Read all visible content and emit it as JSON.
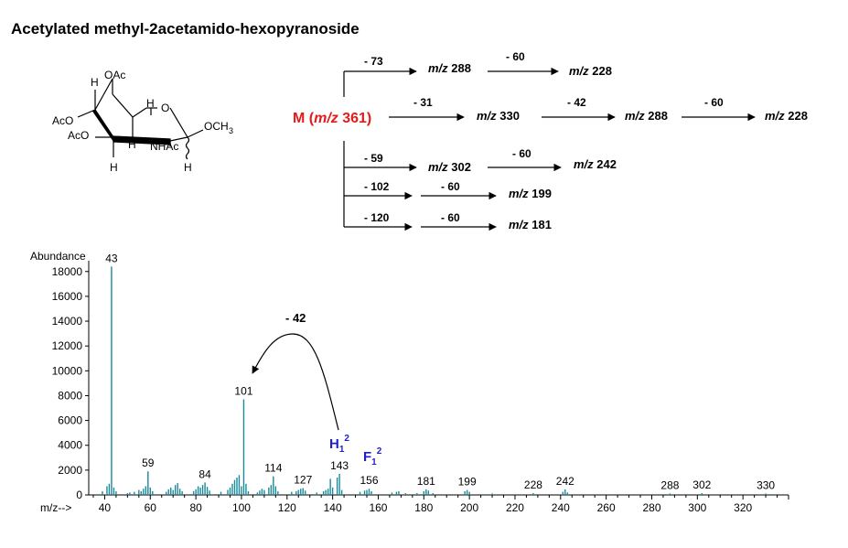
{
  "title": "Acetylated methyl-2acetamido-hexopyranoside",
  "structure": {
    "labels": [
      "OAc",
      "H",
      "H",
      "O",
      "AcO",
      "AcO",
      "H",
      "NHAc",
      "H",
      "H",
      "OCH",
      "3"
    ]
  },
  "scheme": {
    "parent_prefix": "M (",
    "parent_mz": "m/z",
    "parent_value": " 361)",
    "parent_color": "#e31b1b",
    "losses": {
      "a1": "- 73",
      "a2": "- 60",
      "b1": "- 31",
      "b2": "- 42",
      "b3": "- 60",
      "c1": "- 59",
      "c2": "- 60",
      "d1": "- 102",
      "d2": "- 60",
      "e1": "- 120",
      "e2": "- 60"
    },
    "ions": {
      "a1": "288",
      "a2": "228",
      "b1": "330",
      "b2": "288",
      "b3": "228",
      "c1": "302",
      "c2": "242",
      "d2": "199",
      "e2": "181"
    },
    "mz_label": "m/z"
  },
  "chart_data": {
    "type": "bar",
    "ylabel": "Abundance",
    "xlabel": "m/z-->",
    "xlim": [
      33,
      340
    ],
    "ylim": [
      0,
      18500
    ],
    "xticks": [
      40,
      60,
      80,
      100,
      120,
      140,
      160,
      180,
      200,
      220,
      240,
      260,
      280,
      300,
      320
    ],
    "yticks": [
      0,
      2000,
      4000,
      6000,
      8000,
      10000,
      12000,
      14000,
      16000,
      18000
    ],
    "bar_color": "#1a8a9a",
    "peaks": [
      [
        39,
        300
      ],
      [
        41,
        700
      ],
      [
        42,
        900
      ],
      [
        43,
        18400
      ],
      [
        44,
        600
      ],
      [
        45,
        300
      ],
      [
        50,
        150
      ],
      [
        51,
        200
      ],
      [
        53,
        250
      ],
      [
        55,
        400
      ],
      [
        56,
        300
      ],
      [
        57,
        500
      ],
      [
        58,
        700
      ],
      [
        59,
        1900
      ],
      [
        60,
        600
      ],
      [
        61,
        300
      ],
      [
        67,
        250
      ],
      [
        68,
        450
      ],
      [
        69,
        600
      ],
      [
        70,
        400
      ],
      [
        71,
        800
      ],
      [
        72,
        950
      ],
      [
        73,
        500
      ],
      [
        74,
        300
      ],
      [
        79,
        300
      ],
      [
        80,
        450
      ],
      [
        81,
        700
      ],
      [
        82,
        600
      ],
      [
        83,
        800
      ],
      [
        84,
        1000
      ],
      [
        85,
        650
      ],
      [
        86,
        350
      ],
      [
        91,
        250
      ],
      [
        94,
        400
      ],
      [
        95,
        600
      ],
      [
        96,
        900
      ],
      [
        97,
        1200
      ],
      [
        98,
        1400
      ],
      [
        99,
        1600
      ],
      [
        100,
        700
      ],
      [
        101,
        7700
      ],
      [
        102,
        900
      ],
      [
        103,
        300
      ],
      [
        107,
        200
      ],
      [
        108,
        350
      ],
      [
        109,
        500
      ],
      [
        110,
        400
      ],
      [
        112,
        600
      ],
      [
        113,
        800
      ],
      [
        114,
        1500
      ],
      [
        115,
        700
      ],
      [
        116,
        300
      ],
      [
        122,
        250
      ],
      [
        124,
        300
      ],
      [
        125,
        400
      ],
      [
        126,
        500
      ],
      [
        127,
        550
      ],
      [
        128,
        350
      ],
      [
        133,
        200
      ],
      [
        136,
        300
      ],
      [
        137,
        400
      ],
      [
        138,
        500
      ],
      [
        139,
        1300
      ],
      [
        140,
        600
      ],
      [
        142,
        1400
      ],
      [
        143,
        1700
      ],
      [
        144,
        400
      ],
      [
        152,
        250
      ],
      [
        154,
        350
      ],
      [
        155,
        400
      ],
      [
        156,
        500
      ],
      [
        157,
        300
      ],
      [
        166,
        200
      ],
      [
        168,
        250
      ],
      [
        169,
        300
      ],
      [
        172,
        150
      ],
      [
        177,
        150
      ],
      [
        180,
        300
      ],
      [
        181,
        450
      ],
      [
        182,
        350
      ],
      [
        184,
        150
      ],
      [
        198,
        300
      ],
      [
        199,
        400
      ],
      [
        200,
        250
      ],
      [
        210,
        120
      ],
      [
        228,
        150
      ],
      [
        241,
        250
      ],
      [
        242,
        450
      ],
      [
        243,
        200
      ],
      [
        288,
        120
      ],
      [
        302,
        150
      ],
      [
        330,
        120
      ]
    ],
    "peak_labels": [
      {
        "x": 43,
        "y": 18400,
        "text": "43"
      },
      {
        "x": 59,
        "y": 1900,
        "text": "59"
      },
      {
        "x": 84,
        "y": 1000,
        "text": "84"
      },
      {
        "x": 101,
        "y": 7700,
        "text": "101"
      },
      {
        "x": 114,
        "y": 1500,
        "text": "114"
      },
      {
        "x": 127,
        "y": 550,
        "text": "127"
      },
      {
        "x": 143,
        "y": 1700,
        "text": "143"
      },
      {
        "x": 156,
        "y": 500,
        "text": "156"
      },
      {
        "x": 181,
        "y": 450,
        "text": "181"
      },
      {
        "x": 199,
        "y": 400,
        "text": "199"
      },
      {
        "x": 228,
        "y": 150,
        "text": "228"
      },
      {
        "x": 242,
        "y": 450,
        "text": "242"
      },
      {
        "x": 288,
        "y": 120,
        "text": "288"
      },
      {
        "x": 302,
        "y": 150,
        "text": "302"
      },
      {
        "x": 330,
        "y": 120,
        "text": "330"
      }
    ],
    "annotations": {
      "loss_label": "- 42",
      "h_label": "H",
      "h_sub": "1",
      "h_sup": "2",
      "f_label": "F",
      "f_sub": "1",
      "f_sup": "2",
      "ion_color": "#1f1fc8"
    }
  }
}
